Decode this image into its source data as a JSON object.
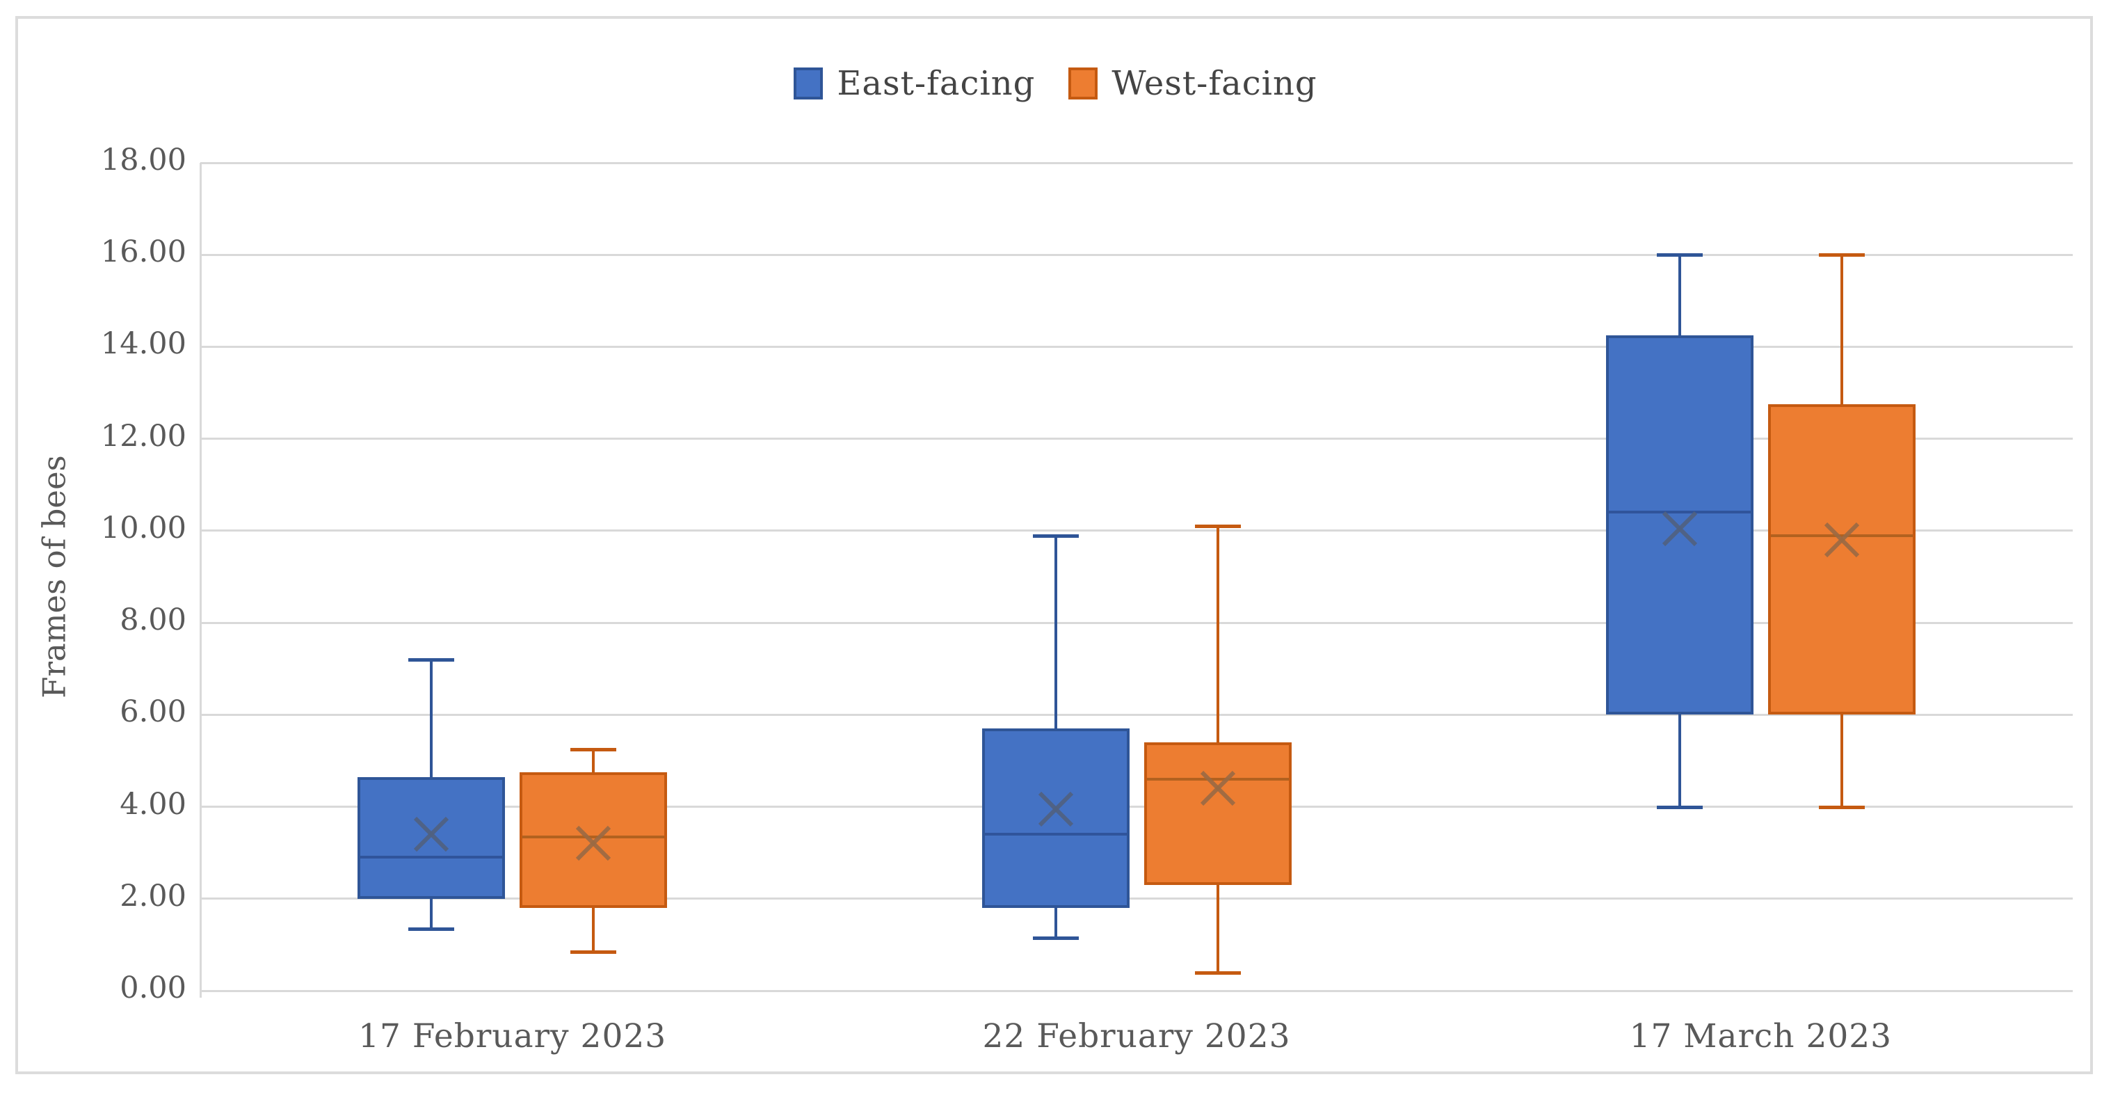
{
  "chart_data": {
    "type": "boxplot",
    "title": "",
    "ylabel": "Frames of bees",
    "xlabel": "",
    "ylim": [
      0,
      18
    ],
    "y_tick_step": 2,
    "y_tick_labels": [
      "0.00",
      "2.00",
      "4.00",
      "6.00",
      "8.00",
      "10.00",
      "12.00",
      "14.00",
      "16.00",
      "18.00"
    ],
    "grid": "horizontal",
    "legend_position": "top-center",
    "categories": [
      "17 February 2023",
      "22 February 2023",
      "17 March 2023"
    ],
    "series": [
      {
        "name": "East-facing",
        "fill": "#4472C4",
        "border": "#2F5597",
        "median_color": "#30549B",
        "mean_color": "#516180",
        "boxes": [
          {
            "whisker_low": 1.35,
            "q1": 2.0,
            "median": 2.9,
            "mean": 3.4,
            "q3": 4.65,
            "whisker_high": 7.2
          },
          {
            "whisker_low": 1.15,
            "q1": 1.8,
            "median": 3.4,
            "mean": 3.95,
            "q3": 5.7,
            "whisker_high": 9.9
          },
          {
            "whisker_low": 4.0,
            "q1": 6.0,
            "median": 10.4,
            "mean": 10.05,
            "q3": 14.25,
            "whisker_high": 16.0
          }
        ]
      },
      {
        "name": "West-facing",
        "fill": "#ED7D31",
        "border": "#C55A11",
        "median_color": "#B2611F",
        "mean_color": "#9A6A44",
        "boxes": [
          {
            "whisker_low": 0.85,
            "q1": 1.8,
            "median": 3.35,
            "mean": 3.2,
            "q3": 4.75,
            "whisker_high": 5.25
          },
          {
            "whisker_low": 0.4,
            "q1": 2.3,
            "median": 4.6,
            "mean": 4.4,
            "q3": 5.4,
            "whisker_high": 10.1
          },
          {
            "whisker_low": 4.0,
            "q1": 6.0,
            "median": 9.9,
            "mean": 9.8,
            "q3": 12.75,
            "whisker_high": 16.0
          }
        ]
      }
    ]
  },
  "colors": {
    "grid": "#d9d9d9",
    "frame": "#dcdcdc",
    "tick_text": "#595959",
    "legend_text": "#444444",
    "background": "#ffffff"
  }
}
